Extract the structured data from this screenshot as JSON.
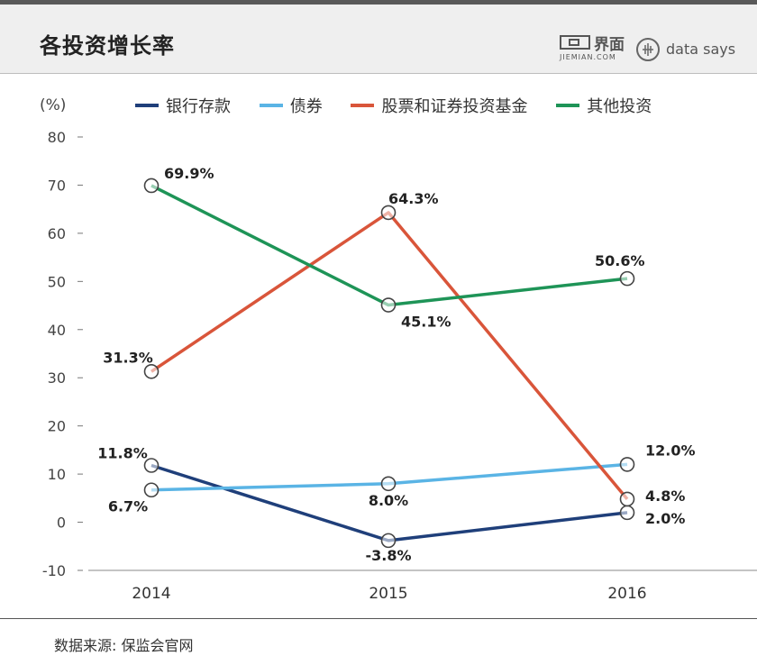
{
  "header": {
    "title": "各投资增长率"
  },
  "brand": {
    "jiemian_cn": "界面",
    "jiemian_en": "JIEMIAN.COM",
    "datasays": "data says"
  },
  "unit_label": "(%)",
  "source": "数据来源: 保监会官网",
  "chart_data": {
    "type": "line",
    "x": [
      "2014",
      "2015",
      "2016"
    ],
    "ylim": [
      -10,
      80
    ],
    "yticks": [
      -10,
      0,
      10,
      20,
      30,
      40,
      50,
      60,
      70,
      80
    ],
    "ylabel": "(%)",
    "legend_position": "top",
    "grid": false,
    "series": [
      {
        "name": "银行存款",
        "color": "#1f3f7a",
        "values": [
          11.8,
          -3.8,
          2.0
        ],
        "labels": [
          "11.8%",
          "-3.8%",
          "2.0%"
        ]
      },
      {
        "name": "债券",
        "color": "#5ab4e5",
        "values": [
          6.7,
          8.0,
          12.0
        ],
        "labels": [
          "6.7%",
          "8.0%",
          "12.0%"
        ]
      },
      {
        "name": "股票和证券投资基金",
        "color": "#d9553a",
        "values": [
          31.3,
          64.3,
          4.8
        ],
        "labels": [
          "31.3%",
          "64.3%",
          "4.8%"
        ]
      },
      {
        "name": "其他投资",
        "color": "#1e9457",
        "values": [
          69.9,
          45.1,
          50.6
        ],
        "labels": [
          "69.9%",
          "45.1%",
          "50.6%"
        ]
      }
    ]
  }
}
